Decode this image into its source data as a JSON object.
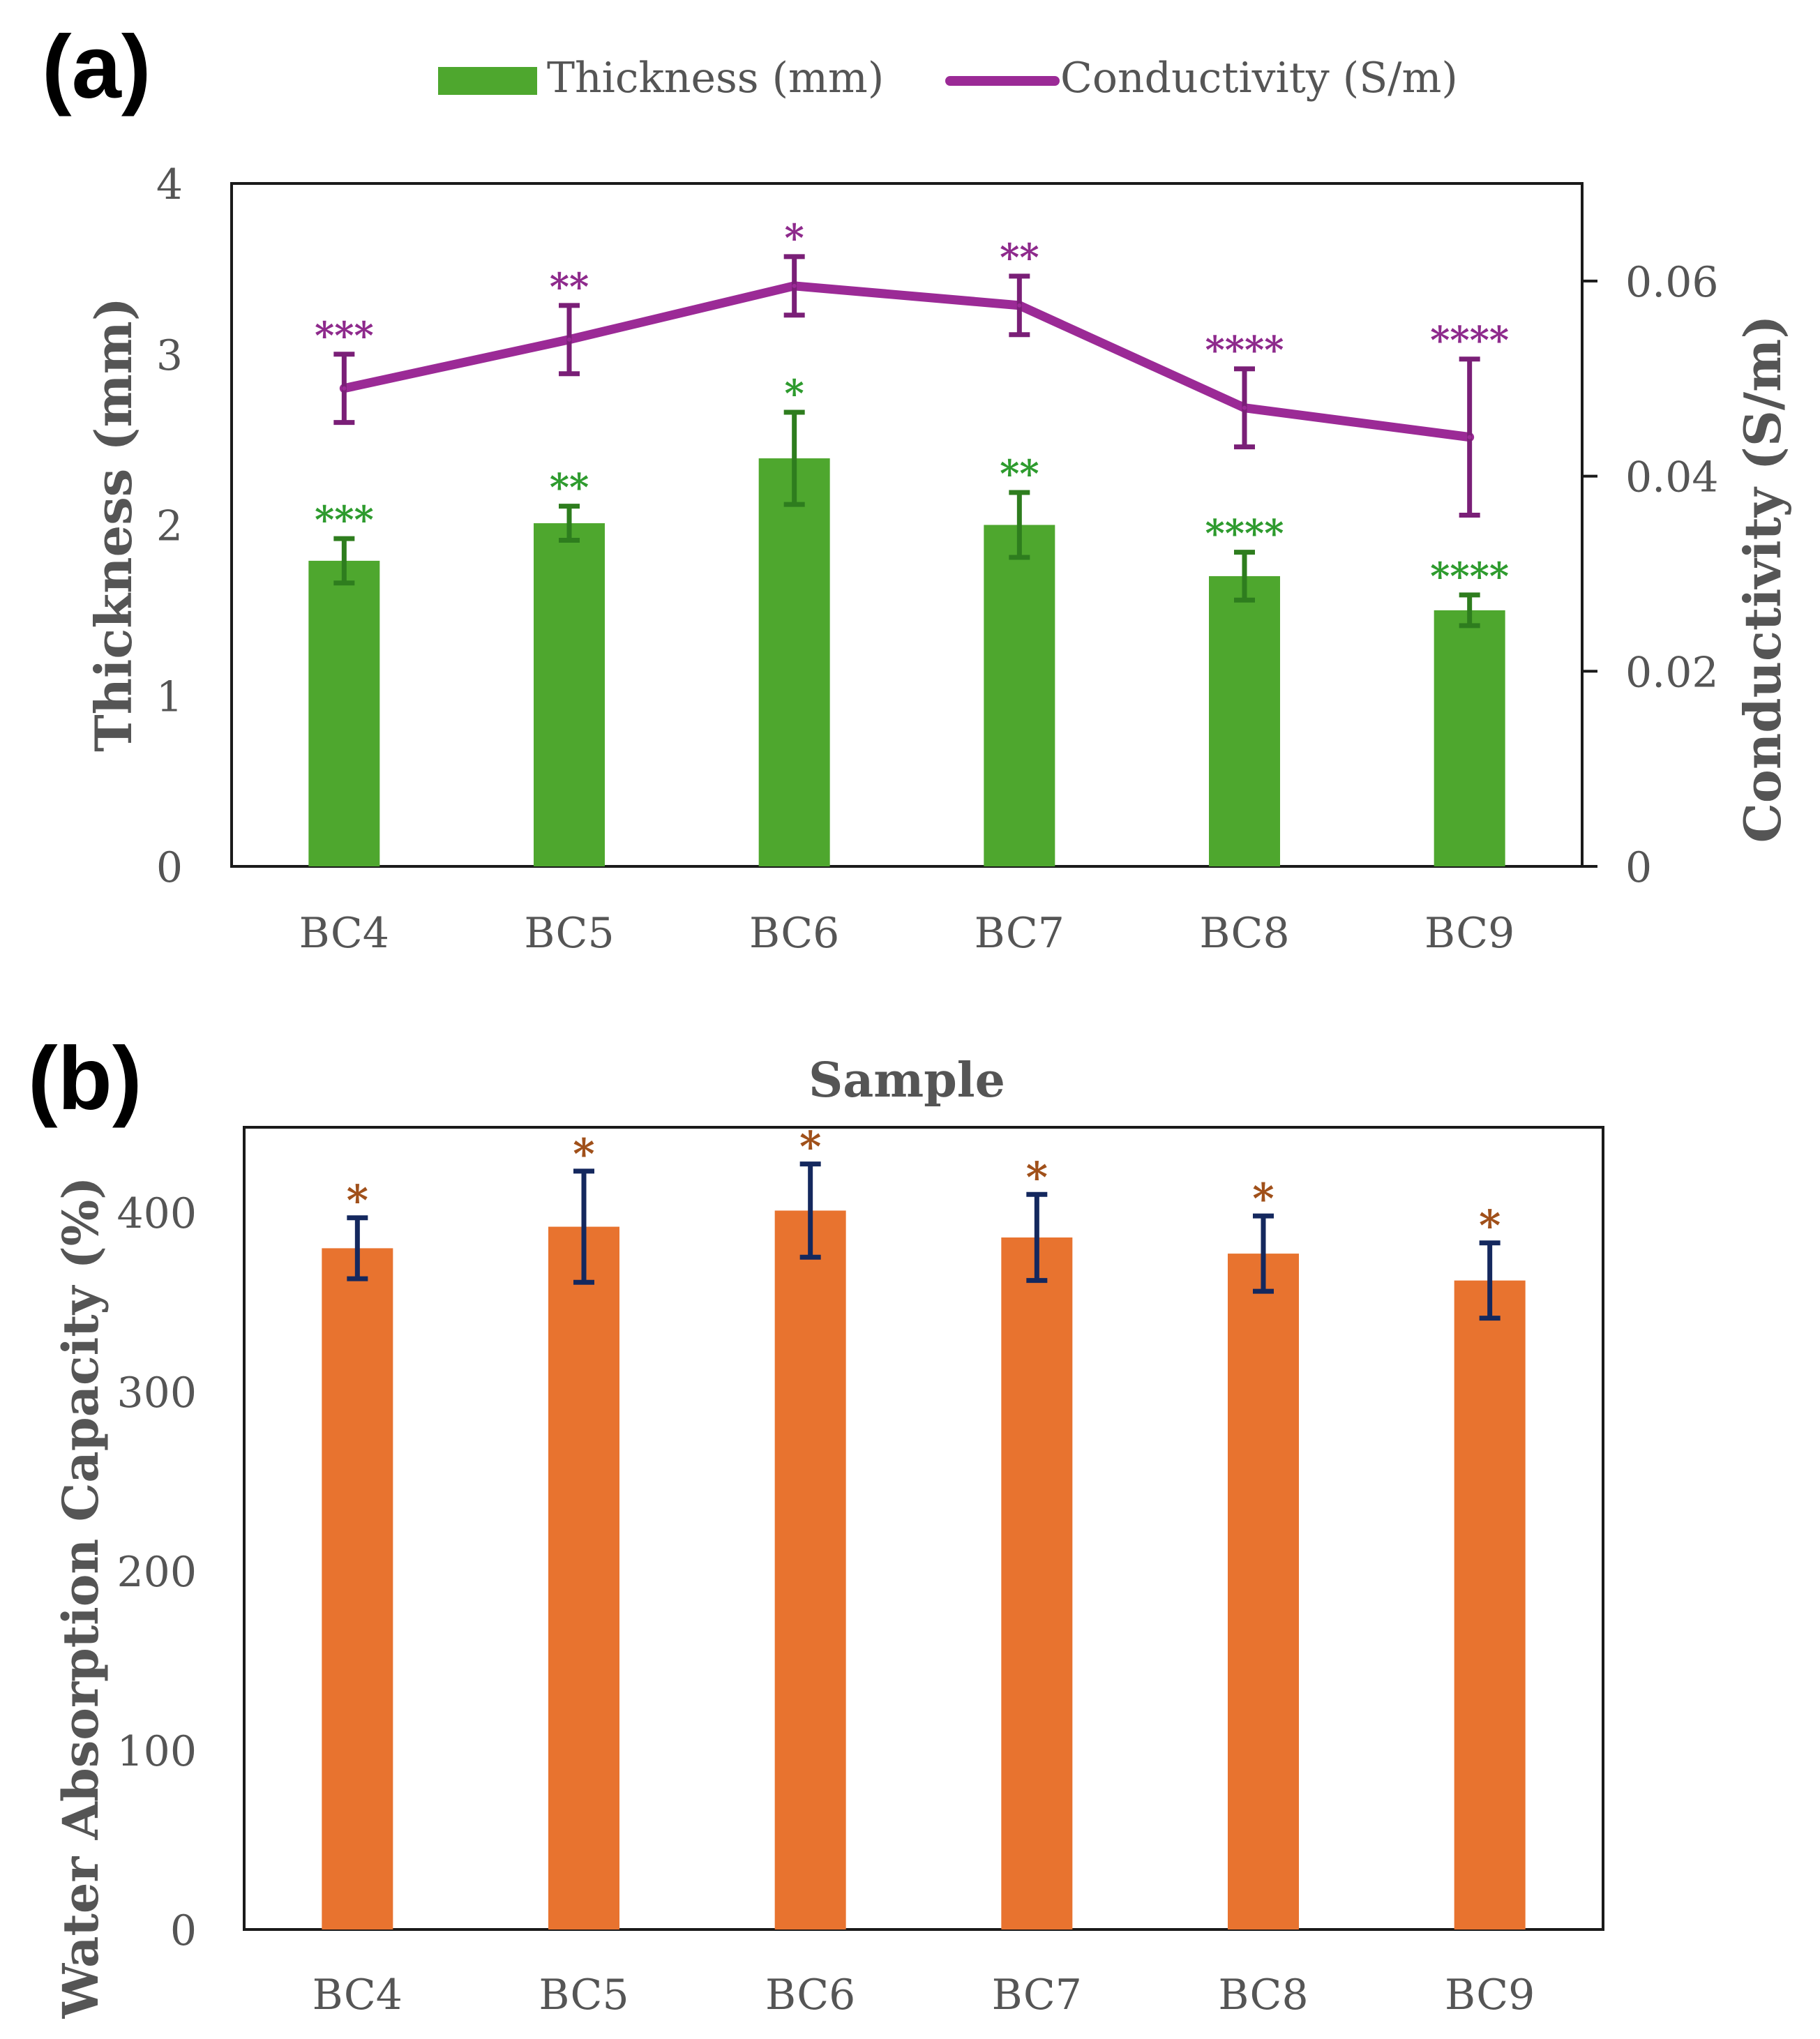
{
  "chart_data": [
    {
      "panel_label": "(a)",
      "type": "bar",
      "categories": [
        "BC4",
        "BC5",
        "BC6",
        "BC7",
        "BC8",
        "BC9"
      ],
      "series": [
        {
          "name": "Thickness (mm)",
          "type": "bar",
          "axis": "left",
          "color": "#4ea72e",
          "error_color": "#2e7d1e",
          "values": [
            1.79,
            2.01,
            2.39,
            2.0,
            1.7,
            1.5
          ],
          "errors": [
            0.13,
            0.1,
            0.27,
            0.19,
            0.14,
            0.09
          ],
          "annotations": [
            "***",
            "**",
            "*",
            "**",
            "****",
            "****"
          ],
          "annotation_color": "#2e9b2e"
        },
        {
          "name": "Conductivity (S/m)",
          "type": "line",
          "axis": "right",
          "color": "#9b2a96",
          "error_color": "#7a1f77",
          "values": [
            0.049,
            0.054,
            0.0595,
            0.0575,
            0.047,
            0.044
          ],
          "errors": [
            0.0035,
            0.0035,
            0.003,
            0.003,
            0.004,
            0.008
          ],
          "annotations": [
            "***",
            "**",
            "*",
            "**",
            "****",
            "****"
          ],
          "annotation_color": "#8e2a8c"
        }
      ],
      "ylabel": "Thickness (mm)",
      "ylabel_right": "Conductivity (S/m)",
      "ylim": [
        0,
        4
      ],
      "yticks": [
        "0",
        "1",
        "2",
        "3",
        "4"
      ],
      "ylim_right": [
        0,
        0.07
      ],
      "yticks_right": [
        "0",
        "0.02",
        "0.04",
        "0.06"
      ],
      "legend": [
        "Thickness (mm)",
        "Conductivity (S/m)"
      ],
      "legend_position": "top"
    },
    {
      "panel_label": "(b)",
      "type": "bar",
      "title": "Sample",
      "categories": [
        "BC4",
        "BC5",
        "BC6",
        "BC7",
        "BC8",
        "BC9"
      ],
      "series": [
        {
          "name": "Water Absorption Capacity (%)",
          "color": "#e8732f",
          "error_color": "#14285e",
          "values": [
            380,
            392,
            401,
            386,
            377,
            362
          ],
          "errors": [
            17,
            31,
            26,
            24,
            21,
            21
          ],
          "annotations": [
            "*",
            "*",
            "*",
            "*",
            "*",
            "*"
          ],
          "annotation_color": "#a0501a"
        }
      ],
      "ylabel": "Water Absorption Capacity (%)",
      "ylim": [
        0,
        450
      ],
      "yticks": [
        "0",
        "100",
        "200",
        "300",
        "400"
      ]
    }
  ]
}
